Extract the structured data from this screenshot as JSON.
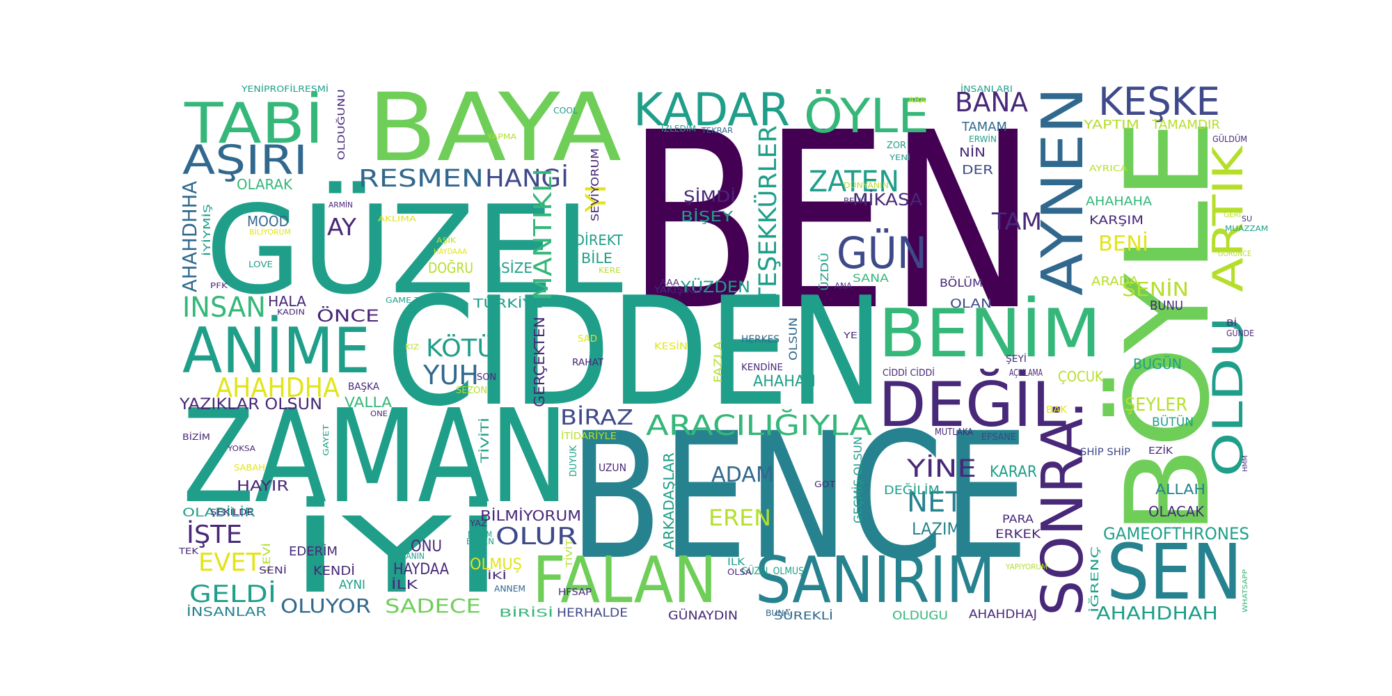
{
  "palette": {
    "dark_purple": "#440154",
    "indigo": "#482878",
    "blue": "#3e4989",
    "steel_blue": "#31688e",
    "teal_blue": "#26828e",
    "teal": "#1f9e89",
    "green": "#35b779",
    "light_green": "#6ece58",
    "lime": "#b5de2b",
    "yellow": "#e2e418"
  },
  "words": [
    {
      "text": "BEN",
      "color": "dark_purple"
    },
    {
      "text": "CİDDEN",
      "color": "teal"
    },
    {
      "text": "BENCE",
      "color": "teal_blue"
    },
    {
      "text": "ZAMAN",
      "color": "teal"
    },
    {
      "text": "GÜZEL",
      "color": "teal"
    },
    {
      "text": "BÖYLE",
      "color": "light_green"
    },
    {
      "text": "BAYA",
      "color": "light_green"
    },
    {
      "text": "İYİ",
      "color": "teal"
    },
    {
      "text": "FALAN",
      "color": "light_green"
    },
    {
      "text": "SANIRIM",
      "color": "teal_blue"
    },
    {
      "text": "SEN",
      "color": "teal_blue"
    },
    {
      "text": "SONRA:",
      "color": "indigo"
    },
    {
      "text": "AYNEN",
      "color": "steel_blue"
    },
    {
      "text": "ARTIK",
      "color": "lime"
    },
    {
      "text": "OLDU",
      "color": "teal"
    },
    {
      "text": "BENİM",
      "color": "green"
    },
    {
      "text": "DEĞİL",
      "color": "indigo"
    },
    {
      "text": "ANİME",
      "color": "teal"
    },
    {
      "text": "TABİ",
      "color": "green"
    },
    {
      "text": "KADAR",
      "color": "teal"
    },
    {
      "text": "ÖYLE",
      "color": "green"
    },
    {
      "text": "KEŞKE",
      "color": "blue"
    },
    {
      "text": "AŞIRI",
      "color": "steel_blue"
    },
    {
      "text": "RESMEN",
      "color": "steel_blue"
    },
    {
      "text": "HANGİ",
      "color": "blue"
    },
    {
      "text": "ARACILIĞIYLA",
      "color": "green"
    },
    {
      "text": "GÜN",
      "color": "blue"
    },
    {
      "text": "ZATEN",
      "color": "teal"
    },
    {
      "text": "TEŞEKKÜRLER",
      "color": "teal"
    },
    {
      "text": "BANA",
      "color": "indigo"
    },
    {
      "text": "MANTIKLI",
      "color": "green"
    },
    {
      "text": "AHAHDHA",
      "color": "yellow"
    },
    {
      "text": "INSAN",
      "color": "green"
    },
    {
      "text": "KÖTÜ",
      "color": "teal"
    },
    {
      "text": "YUH",
      "color": "steel_blue"
    },
    {
      "text": "BİRAZ",
      "color": "blue"
    },
    {
      "text": "ADAM",
      "color": "steel_blue"
    },
    {
      "text": "YİNE",
      "color": "indigo"
    },
    {
      "text": "NET",
      "color": "teal_blue"
    },
    {
      "text": "EREN",
      "color": "lime"
    },
    {
      "text": "AHAHDHAH",
      "color": "teal"
    },
    {
      "text": "GAMEOFTHRONES",
      "color": "teal"
    },
    {
      "text": "OLUR",
      "color": "blue"
    },
    {
      "text": "İŞTE",
      "color": "indigo"
    },
    {
      "text": "EVET",
      "color": "yellow"
    },
    {
      "text": "GELDİ",
      "color": "teal"
    },
    {
      "text": "OLUYOR",
      "color": "steel_blue"
    },
    {
      "text": "SADECE",
      "color": "light_green"
    },
    {
      "text": "TAM",
      "color": "indigo"
    },
    {
      "text": "BENİ",
      "color": "yellow"
    },
    {
      "text": "SENİN",
      "color": "lime"
    },
    {
      "text": "ŞEYLER",
      "color": "lime"
    },
    {
      "text": "AHAHDHHA",
      "color": "steel_blue"
    },
    {
      "text": "YAZIKLAR OLSUN",
      "color": "indigo"
    },
    {
      "text": "AY",
      "color": "indigo"
    },
    {
      "text": "ÖNCE",
      "color": "indigo"
    },
    {
      "text": "MİKASA",
      "color": "indigo"
    },
    {
      "text": "AHAHAH",
      "color": "teal"
    },
    {
      "text": "LAZIM",
      "color": "teal_blue"
    },
    {
      "text": "KARAR",
      "color": "teal"
    },
    {
      "text": "ALLAH",
      "color": "teal_blue"
    },
    {
      "text": "OLACAK",
      "color": "indigo"
    },
    {
      "text": "YÜZDEN",
      "color": "teal"
    },
    {
      "text": "ŞİMDİ",
      "color": "indigo"
    },
    {
      "text": "BİŞEY",
      "color": "teal"
    },
    {
      "text": "BİLMİYORUM",
      "color": "indigo"
    },
    {
      "text": "ARKADAŞLAR",
      "color": "teal"
    },
    {
      "text": "OLMUŞ",
      "color": "yellow"
    },
    {
      "text": "HAYDAA",
      "color": "indigo"
    },
    {
      "text": "ONU",
      "color": "indigo"
    },
    {
      "text": "DOĞRU",
      "color": "lime"
    },
    {
      "text": "SİZE",
      "color": "teal"
    },
    {
      "text": "BİLE",
      "color": "teal"
    },
    {
      "text": "DİREKT",
      "color": "teal"
    },
    {
      "text": "YI",
      "color": "yellow"
    },
    {
      "text": "OLARAK",
      "color": "green"
    },
    {
      "text": "MOOD",
      "color": "steel_blue"
    },
    {
      "text": "HALA",
      "color": "indigo"
    },
    {
      "text": "VALLA",
      "color": "green"
    },
    {
      "text": "HAYIR",
      "color": "indigo"
    },
    {
      "text": "OLABİLİR",
      "color": "teal"
    },
    {
      "text": "EDERİM",
      "color": "indigo"
    },
    {
      "text": "KENDİ",
      "color": "indigo"
    },
    {
      "text": "AYNI",
      "color": "teal"
    },
    {
      "text": "İLK",
      "color": "indigo"
    },
    {
      "text": "İNSANLAR",
      "color": "teal_blue"
    },
    {
      "text": "TÜRKİYE",
      "color": "teal"
    },
    {
      "text": "GERÇEKTEN",
      "color": "indigo"
    },
    {
      "text": "TİVİTİ",
      "color": "teal"
    },
    {
      "text": "BUGÜN",
      "color": "teal"
    },
    {
      "text": "ÇOCUK",
      "color": "lime"
    },
    {
      "text": "BÜTÜN",
      "color": "teal"
    },
    {
      "text": "BUNU",
      "color": "indigo"
    },
    {
      "text": "OLAN",
      "color": "blue"
    },
    {
      "text": "BÖLÜM",
      "color": "indigo"
    },
    {
      "text": "ARADA",
      "color": "lime"
    },
    {
      "text": "NİN",
      "color": "indigo"
    },
    {
      "text": "DER",
      "color": "blue"
    },
    {
      "text": "YAPTIM",
      "color": "lime"
    },
    {
      "text": "TAMAM",
      "color": "steel_blue"
    },
    {
      "text": "TAMAMDIR",
      "color": "lime"
    },
    {
      "text": "AHAHAHA",
      "color": "green"
    },
    {
      "text": "KARŞIM",
      "color": "indigo"
    },
    {
      "text": "DEĞİLİM",
      "color": "teal"
    },
    {
      "text": "ERKEK",
      "color": "indigo"
    },
    {
      "text": "PARA",
      "color": "indigo"
    },
    {
      "text": "OLDUGU",
      "color": "green"
    },
    {
      "text": "AHAHDHAJ",
      "color": "indigo"
    },
    {
      "text": "SÜREKLİ",
      "color": "steel_blue"
    },
    {
      "text": "GÜNAYDIN",
      "color": "indigo"
    },
    {
      "text": "HERHALDE",
      "color": "blue"
    },
    {
      "text": "BİRİSİ",
      "color": "green"
    },
    {
      "text": "SANA",
      "color": "green"
    },
    {
      "text": "ÜZDÜ",
      "color": "teal"
    },
    {
      "text": "FAZLA",
      "color": "lime"
    },
    {
      "text": "OLSUN",
      "color": "steel_blue"
    },
    {
      "text": "GEÇMİŞ OLSUN",
      "color": "teal"
    },
    {
      "text": "SEVİYORUM",
      "color": "indigo"
    },
    {
      "text": "İĞRENÇ",
      "color": "teal"
    },
    {
      "text": "GÜZEL OLMUŞ",
      "color": "teal"
    },
    {
      "text": "UZUN",
      "color": "indigo"
    },
    {
      "text": "BAŞKA",
      "color": "indigo"
    },
    {
      "text": "SEZON",
      "color": "lime"
    },
    {
      "text": "SON",
      "color": "indigo"
    },
    {
      "text": "RAHAT",
      "color": "indigo"
    },
    {
      "text": "SAD",
      "color": "yellow"
    },
    {
      "text": "KESİN",
      "color": "yellow"
    },
    {
      "text": "HERKES",
      "color": "steel_blue"
    },
    {
      "text": "KENDİNE",
      "color": "indigo"
    },
    {
      "text": "CİDDİ CİDDİ",
      "color": "indigo"
    },
    {
      "text": "AÇIKLAMA",
      "color": "indigo"
    },
    {
      "text": "ŞEYİ",
      "color": "indigo"
    },
    {
      "text": "MUTLAKA",
      "color": "indigo"
    },
    {
      "text": "EFSANE",
      "color": "blue"
    },
    {
      "text": "SHİP SHİP",
      "color": "blue"
    },
    {
      "text": "EZİK",
      "color": "indigo"
    },
    {
      "text": "BAK",
      "color": "yellow"
    },
    {
      "text": "İTİDARİYLE",
      "color": "lime"
    },
    {
      "text": "DUYUK",
      "color": "teal"
    },
    {
      "text": "YAKIŞIKLI",
      "color": "indigo"
    },
    {
      "text": "AAA",
      "color": "indigo"
    },
    {
      "text": "ANA",
      "color": "indigo"
    },
    {
      "text": "YE",
      "color": "indigo"
    },
    {
      "text": "GOT",
      "color": "indigo"
    },
    {
      "text": "ŞEKİLDE",
      "color": "indigo"
    },
    {
      "text": "TEK",
      "color": "indigo"
    },
    {
      "text": "LEVİ",
      "color": "lime"
    },
    {
      "text": "SENİ",
      "color": "indigo"
    },
    {
      "text": "İNSANIN",
      "color": "teal"
    },
    {
      "text": "YAZ",
      "color": "indigo"
    },
    {
      "text": "DEVAM",
      "color": "teal"
    },
    {
      "text": "BAZEN",
      "color": "teal"
    },
    {
      "text": "TİVİT",
      "color": "lime"
    },
    {
      "text": "İKİ",
      "color": "indigo"
    },
    {
      "text": "ANNEM",
      "color": "steel_blue"
    },
    {
      "text": "HFSAP",
      "color": "indigo"
    },
    {
      "text": "İLK",
      "color": "teal"
    },
    {
      "text": "OLSA",
      "color": "indigo"
    },
    {
      "text": "BUNA",
      "color": "steel_blue"
    },
    {
      "text": "YAPIYORUM",
      "color": "lime"
    },
    {
      "text": "WHATSAPP",
      "color": "green"
    },
    {
      "text": "HMM",
      "color": "indigo"
    },
    {
      "text": "GÜNDE",
      "color": "indigo"
    },
    {
      "text": "Bİ",
      "color": "indigo"
    },
    {
      "text": "GÖRÜNCE",
      "color": "lime"
    },
    {
      "text": "GERİ",
      "color": "lime"
    },
    {
      "text": "SU",
      "color": "indigo"
    },
    {
      "text": "MUAZZAM",
      "color": "teal"
    },
    {
      "text": "GÜLDÜM",
      "color": "indigo"
    },
    {
      "text": "AYRICA",
      "color": "lime"
    },
    {
      "text": "ERWİN",
      "color": "teal"
    },
    {
      "text": "ZOR",
      "color": "teal"
    },
    {
      "text": "YENİ",
      "color": "teal"
    },
    {
      "text": "DÜNYANIN",
      "color": "lime"
    },
    {
      "text": "BELLİ",
      "color": "indigo"
    },
    {
      "text": "İNSANLARI",
      "color": "teal"
    },
    {
      "text": "ARA",
      "color": "yellow"
    },
    {
      "text": "İZLEDİM",
      "color": "teal"
    },
    {
      "text": "TEKRAR",
      "color": "steel_blue"
    },
    {
      "text": "COOL",
      "color": "teal"
    },
    {
      "text": "YAPMA",
      "color": "lime"
    },
    {
      "text": "OLDUĞUNU",
      "color": "indigo"
    },
    {
      "text": "YENİPROFİLRESMİ",
      "color": "teal"
    },
    {
      "text": "ARMİN",
      "color": "indigo"
    },
    {
      "text": "BİLİYORUM",
      "color": "yellow"
    },
    {
      "text": "AKLIMA",
      "color": "yellow"
    },
    {
      "text": "İYİYMİŞ",
      "color": "teal"
    },
    {
      "text": "LOVE",
      "color": "teal"
    },
    {
      "text": "PFK",
      "color": "indigo"
    },
    {
      "text": "KADIN",
      "color": "indigo"
    },
    {
      "text": "GAME THRONES",
      "color": "teal"
    },
    {
      "text": "AŞIK",
      "color": "lime"
    },
    {
      "text": "HAYDAAA",
      "color": "yellow"
    },
    {
      "text": "KERE",
      "color": "lime"
    },
    {
      "text": "KIZ",
      "color": "lime"
    },
    {
      "text": "ONE",
      "color": "indigo"
    },
    {
      "text": "BİZİM",
      "color": "indigo"
    },
    {
      "text": "YOKSA",
      "color": "indigo"
    },
    {
      "text": "GAYET",
      "color": "teal"
    },
    {
      "text": "SABAH",
      "color": "yellow"
    }
  ]
}
